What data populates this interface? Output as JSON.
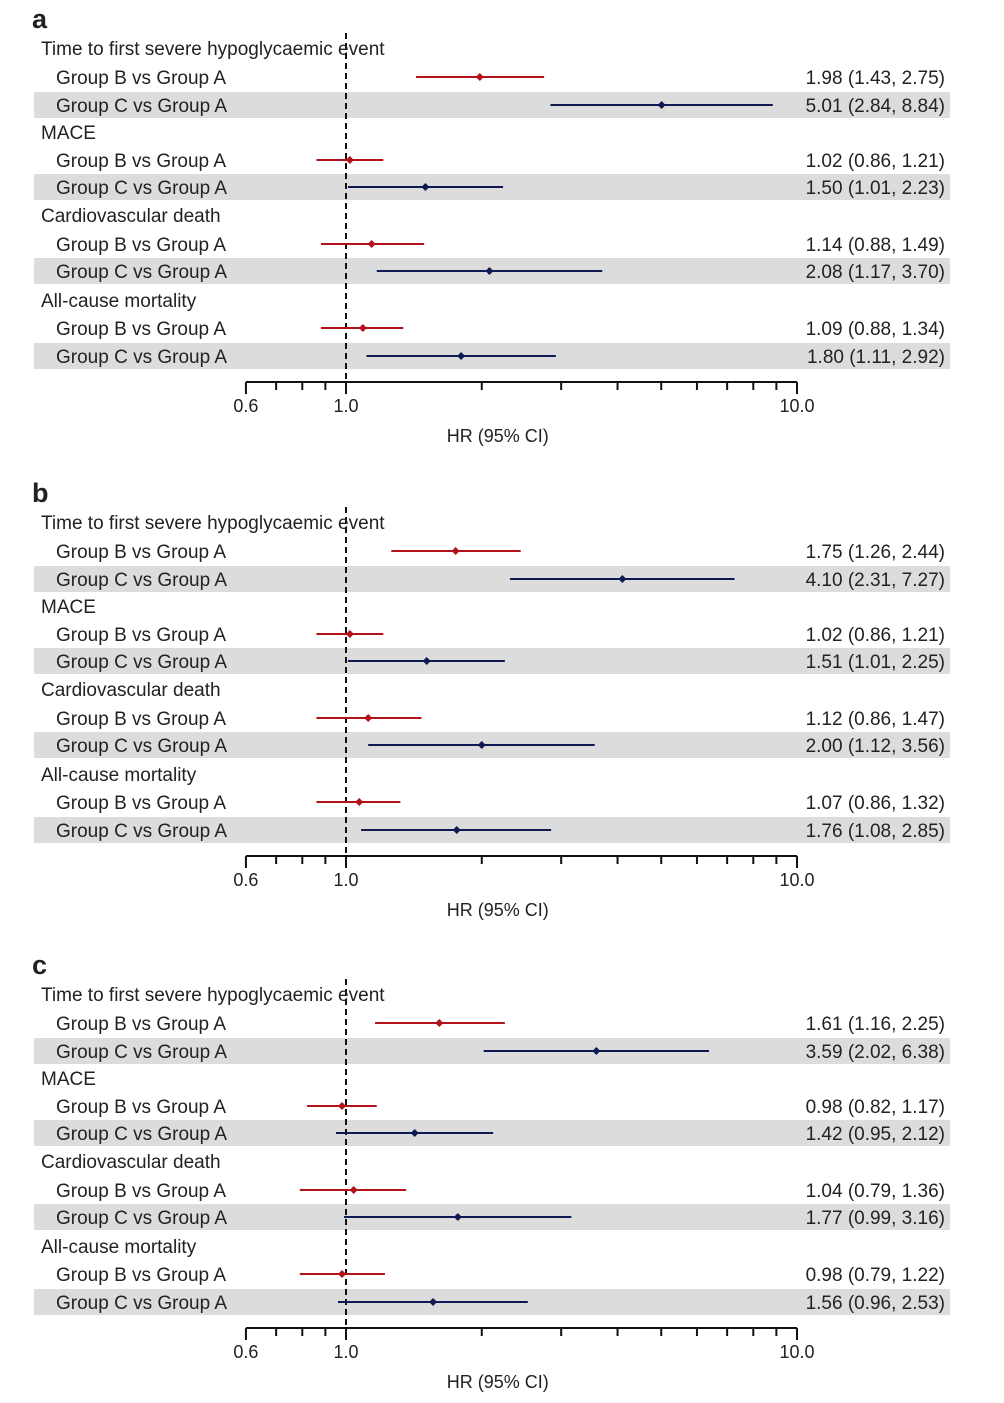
{
  "colors": {
    "group_b": "#b3121b",
    "group_c": "#0f1a55",
    "shade": "#dcdcdc",
    "axis": "#111111"
  },
  "chart_data": [
    {
      "panel": "a",
      "type": "forest",
      "scale": "log",
      "xlim": [
        0.6,
        10.0
      ],
      "reference_line": 1.0,
      "xticklabels": [
        "0.6",
        "1.0",
        "10.0"
      ],
      "xlabel": "HR (95% CI)",
      "groups": [
        {
          "title": "Time to first severe hypoglycaemic event",
          "rows": [
            {
              "label": "Group B vs Group A",
              "series": "B",
              "hr": 1.98,
              "lo": 1.43,
              "hi": 2.75,
              "text": "1.98 (1.43, 2.75)"
            },
            {
              "label": "Group C vs Group A",
              "series": "C",
              "hr": 5.01,
              "lo": 2.84,
              "hi": 8.84,
              "text": "5.01 (2.84, 8.84)"
            }
          ]
        },
        {
          "title": "MACE",
          "rows": [
            {
              "label": "Group B vs Group A",
              "series": "B",
              "hr": 1.02,
              "lo": 0.86,
              "hi": 1.21,
              "text": "1.02 (0.86, 1.21)"
            },
            {
              "label": "Group C vs Group A",
              "series": "C",
              "hr": 1.5,
              "lo": 1.01,
              "hi": 2.23,
              "text": "1.50 (1.01, 2.23)"
            }
          ]
        },
        {
          "title": "Cardiovascular death",
          "rows": [
            {
              "label": "Group B vs Group A",
              "series": "B",
              "hr": 1.14,
              "lo": 0.88,
              "hi": 1.49,
              "text": "1.14 (0.88, 1.49)"
            },
            {
              "label": "Group C vs Group A",
              "series": "C",
              "hr": 2.08,
              "lo": 1.17,
              "hi": 3.7,
              "text": "2.08 (1.17, 3.70)"
            }
          ]
        },
        {
          "title": "All-cause mortality",
          "rows": [
            {
              "label": "Group B vs Group A",
              "series": "B",
              "hr": 1.09,
              "lo": 0.88,
              "hi": 1.34,
              "text": "1.09 (0.88, 1.34)"
            },
            {
              "label": "Group C vs Group A",
              "series": "C",
              "hr": 1.8,
              "lo": 1.11,
              "hi": 2.92,
              "text": "1.80 (1.11, 2.92)"
            }
          ]
        }
      ]
    },
    {
      "panel": "b",
      "type": "forest",
      "scale": "log",
      "xlim": [
        0.6,
        10.0
      ],
      "reference_line": 1.0,
      "xticklabels": [
        "0.6",
        "1.0",
        "10.0"
      ],
      "xlabel": "HR (95% CI)",
      "groups": [
        {
          "title": "Time to first severe hypoglycaemic event",
          "rows": [
            {
              "label": "Group B vs Group A",
              "series": "B",
              "hr": 1.75,
              "lo": 1.26,
              "hi": 2.44,
              "text": "1.75 (1.26, 2.44)"
            },
            {
              "label": "Group C vs Group A",
              "series": "C",
              "hr": 4.1,
              "lo": 2.31,
              "hi": 7.27,
              "text": "4.10 (2.31, 7.27)"
            }
          ]
        },
        {
          "title": "MACE",
          "rows": [
            {
              "label": "Group B vs Group A",
              "series": "B",
              "hr": 1.02,
              "lo": 0.86,
              "hi": 1.21,
              "text": "1.02 (0.86, 1.21)"
            },
            {
              "label": "Group C vs Group A",
              "series": "C",
              "hr": 1.51,
              "lo": 1.01,
              "hi": 2.25,
              "text": "1.51 (1.01, 2.25)"
            }
          ]
        },
        {
          "title": "Cardiovascular death",
          "rows": [
            {
              "label": "Group B vs Group A",
              "series": "B",
              "hr": 1.12,
              "lo": 0.86,
              "hi": 1.47,
              "text": "1.12 (0.86, 1.47)"
            },
            {
              "label": "Group C vs Group A",
              "series": "C",
              "hr": 2.0,
              "lo": 1.12,
              "hi": 3.56,
              "text": "2.00 (1.12, 3.56)"
            }
          ]
        },
        {
          "title": "All-cause mortality",
          "rows": [
            {
              "label": "Group B vs Group A",
              "series": "B",
              "hr": 1.07,
              "lo": 0.86,
              "hi": 1.32,
              "text": "1.07 (0.86, 1.32)"
            },
            {
              "label": "Group C vs Group A",
              "series": "C",
              "hr": 1.76,
              "lo": 1.08,
              "hi": 2.85,
              "text": "1.76 (1.08, 2.85)"
            }
          ]
        }
      ]
    },
    {
      "panel": "c",
      "type": "forest",
      "scale": "log",
      "xlim": [
        0.6,
        10.0
      ],
      "reference_line": 1.0,
      "xticklabels": [
        "0.6",
        "1.0",
        "10.0"
      ],
      "xlabel": "HR (95% CI)",
      "groups": [
        {
          "title": "Time to first severe hypoglycaemic event",
          "rows": [
            {
              "label": "Group B vs Group A",
              "series": "B",
              "hr": 1.61,
              "lo": 1.16,
              "hi": 2.25,
              "text": "1.61 (1.16, 2.25)"
            },
            {
              "label": "Group C vs Group A",
              "series": "C",
              "hr": 3.59,
              "lo": 2.02,
              "hi": 6.38,
              "text": "3.59 (2.02, 6.38)"
            }
          ]
        },
        {
          "title": "MACE",
          "rows": [
            {
              "label": "Group B vs Group A",
              "series": "B",
              "hr": 0.98,
              "lo": 0.82,
              "hi": 1.17,
              "text": "0.98 (0.82, 1.17)"
            },
            {
              "label": "Group C vs Group A",
              "series": "C",
              "hr": 1.42,
              "lo": 0.95,
              "hi": 2.12,
              "text": "1.42 (0.95, 2.12)"
            }
          ]
        },
        {
          "title": "Cardiovascular death",
          "rows": [
            {
              "label": "Group B vs Group A",
              "series": "B",
              "hr": 1.04,
              "lo": 0.79,
              "hi": 1.36,
              "text": "1.04 (0.79, 1.36)"
            },
            {
              "label": "Group C vs Group A",
              "series": "C",
              "hr": 1.77,
              "lo": 0.99,
              "hi": 3.16,
              "text": "1.77 (0.99, 3.16)"
            }
          ]
        },
        {
          "title": "All-cause mortality",
          "rows": [
            {
              "label": "Group B vs Group A",
              "series": "B",
              "hr": 0.98,
              "lo": 0.79,
              "hi": 1.22,
              "text": "0.98 (0.79, 1.22)"
            },
            {
              "label": "Group C vs Group A",
              "series": "C",
              "hr": 1.56,
              "lo": 0.96,
              "hi": 2.53,
              "text": "1.56 (0.96, 2.53)"
            }
          ]
        }
      ]
    }
  ]
}
